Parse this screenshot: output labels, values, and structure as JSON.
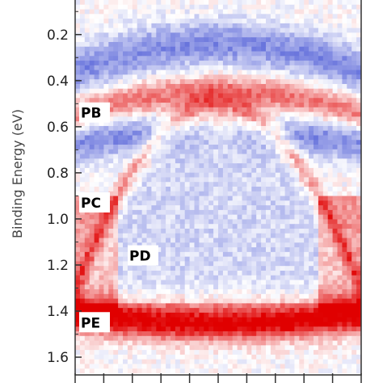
{
  "chart_data": {
    "type": "heatmap",
    "title": "",
    "ylabel": "Binding Energy (eV)",
    "xlabel": "",
    "y_axis": {
      "reversed": true,
      "range": [
        0.05,
        1.67
      ],
      "ticks": [
        0.2,
        0.4,
        0.6,
        0.8,
        1.0,
        1.2,
        1.4,
        1.6
      ],
      "tick_labels": [
        "0.2",
        "0.4",
        "0.6",
        "0.8",
        "1.0",
        "1.2",
        "1.4",
        "1.6"
      ]
    },
    "colormap": {
      "negative": "#2233cc",
      "zero": "#ffffff",
      "positive": "#e00000"
    },
    "annotations": [
      {
        "label": "PB",
        "binding_energy": 0.54
      },
      {
        "label": "PC",
        "binding_energy": 0.93
      },
      {
        "label": "PD",
        "binding_energy": 1.16
      },
      {
        "label": "PE",
        "binding_energy": 1.45
      }
    ]
  }
}
